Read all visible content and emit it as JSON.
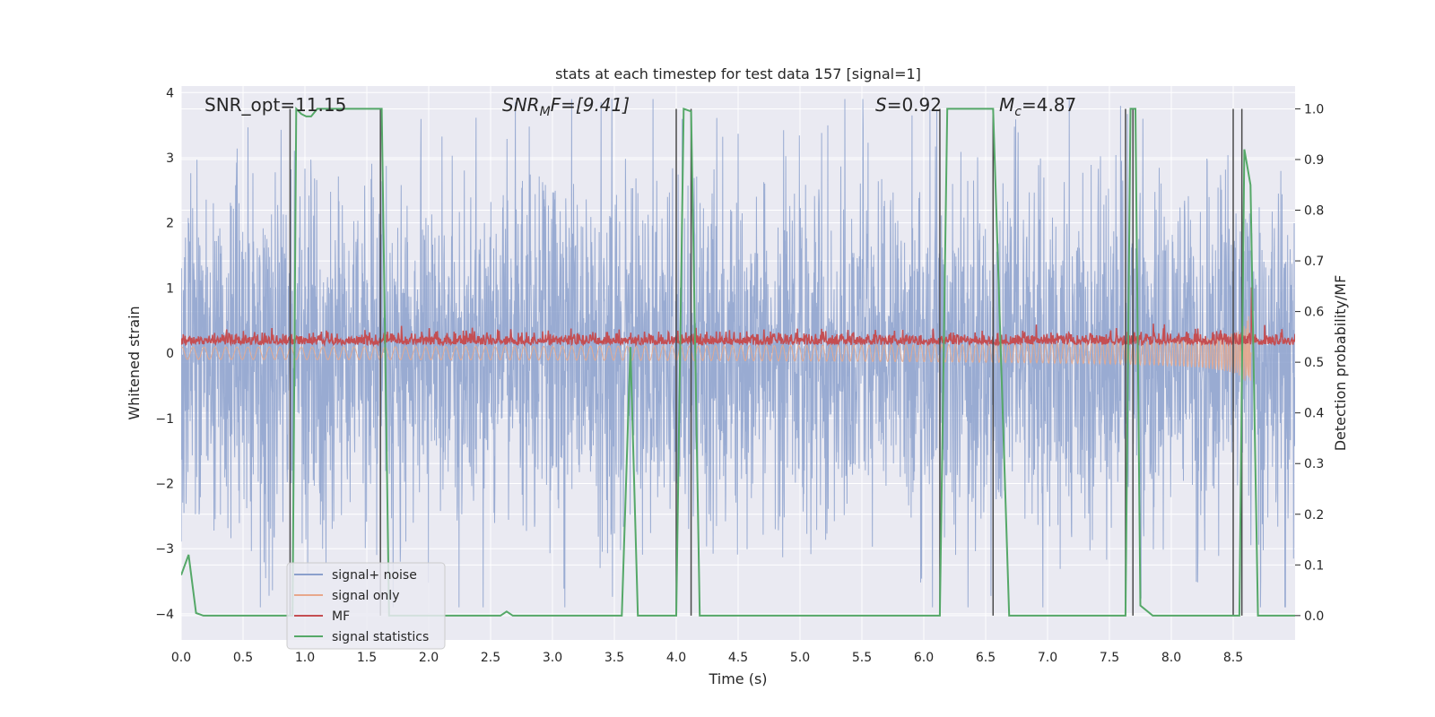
{
  "chart_data": {
    "type": "line",
    "title": "stats at each timestep for test data 157 [signal=1]",
    "xlabel": "Time (s)",
    "ylabel_left": "Whitened strain",
    "ylabel_right": "Detection probability/MF",
    "xlim": [
      0.0,
      9.0
    ],
    "ylim_left": [
      -4.4,
      4.1
    ],
    "ylim_right": [
      -0.048,
      1.045
    ],
    "x_ticks": [
      0.0,
      0.5,
      1.0,
      1.5,
      2.0,
      2.5,
      3.0,
      3.5,
      4.0,
      4.5,
      5.0,
      5.5,
      6.0,
      6.5,
      7.0,
      7.5,
      8.0,
      8.5
    ],
    "x_tick_labels": [
      "0.0",
      "0.5",
      "1.0",
      "1.5",
      "2.0",
      "2.5",
      "3.0",
      "3.5",
      "4.0",
      "4.5",
      "5.0",
      "5.5",
      "6.0",
      "6.5",
      "7.0",
      "7.5",
      "8.0",
      "8.5"
    ],
    "y_ticks_left": [
      -4,
      -3,
      -2,
      -1,
      0,
      1,
      2,
      3,
      4
    ],
    "y_tick_labels_left": [
      "−4",
      "−3",
      "−2",
      "−1",
      "0",
      "1",
      "2",
      "3",
      "4"
    ],
    "y_ticks_right": [
      0.0,
      0.1,
      0.2,
      0.3,
      0.4,
      0.5,
      0.6,
      0.7,
      0.8,
      0.9,
      1.0
    ],
    "y_tick_labels_right": [
      "0.0",
      "0.1",
      "0.2",
      "0.3",
      "0.4",
      "0.5",
      "0.6",
      "0.7",
      "0.8",
      "0.9",
      "1.0"
    ],
    "grid": true,
    "annotations": {
      "snr_opt": "SNR_opt=11.15",
      "snr_mf_main": "SNR",
      "snr_mf_sub": "M",
      "snr_mf_rest": "F=[9.41]",
      "s_main": "S",
      "s_rest": "=0.92",
      "mc_main": "M",
      "mc_sub": "c",
      "mc_rest": "=4.87"
    },
    "legend": {
      "placement": "lower-left",
      "entries": [
        {
          "label": "signal+ noise",
          "color": "#8ba0cc"
        },
        {
          "label": "signal only",
          "color": "#e8a88c"
        },
        {
          "label": "MF",
          "color": "#c44e52"
        },
        {
          "label": "signal statistics",
          "color": "#55a868"
        }
      ]
    },
    "series": {
      "noise": {
        "color": "#8ba0cc",
        "typical_amplitude": 1.7,
        "peak_amplitude": 3.9
      },
      "signal_only": {
        "color": "#e8a88c",
        "chirp_end": 8.65,
        "max_amplitude": 0.65
      },
      "mf": {
        "color": "#c44e52",
        "base_level": 0.15,
        "spike_x": 8.65,
        "spike_y": 1.0
      },
      "statistics": {
        "color": "#55a868",
        "points": [
          [
            0.0,
            0.08
          ],
          [
            0.06,
            0.12
          ],
          [
            0.12,
            0.005
          ],
          [
            0.18,
            0.0
          ],
          [
            0.88,
            0.0
          ],
          [
            0.9,
            0.0
          ],
          [
            0.93,
            1.0
          ],
          [
            0.97,
            0.99
          ],
          [
            1.01,
            0.985
          ],
          [
            1.05,
            0.985
          ],
          [
            1.1,
            1.0
          ],
          [
            1.62,
            1.0
          ],
          [
            1.68,
            0.0
          ],
          [
            2.58,
            0.0
          ],
          [
            2.63,
            0.008
          ],
          [
            2.68,
            0.0
          ],
          [
            3.56,
            0.0
          ],
          [
            3.63,
            0.53
          ],
          [
            3.69,
            0.0
          ],
          [
            4.0,
            0.0
          ],
          [
            4.06,
            1.0
          ],
          [
            4.12,
            0.995
          ],
          [
            4.19,
            0.0
          ],
          [
            6.13,
            0.0
          ],
          [
            6.19,
            1.0
          ],
          [
            6.56,
            1.0
          ],
          [
            6.69,
            0.0
          ],
          [
            7.63,
            0.0
          ],
          [
            7.67,
            1.0
          ],
          [
            7.71,
            1.0
          ],
          [
            7.75,
            0.02
          ],
          [
            7.85,
            0.0
          ],
          [
            8.5,
            0.0
          ],
          [
            8.55,
            0.0
          ],
          [
            8.59,
            0.92
          ],
          [
            8.64,
            0.85
          ],
          [
            8.7,
            0.0
          ],
          [
            9.0,
            0.0
          ]
        ]
      }
    },
    "vertical_lines": [
      0.88,
      1.61,
      4.0,
      4.12,
      6.13,
      6.56,
      7.63,
      7.69,
      8.5,
      8.57
    ]
  }
}
